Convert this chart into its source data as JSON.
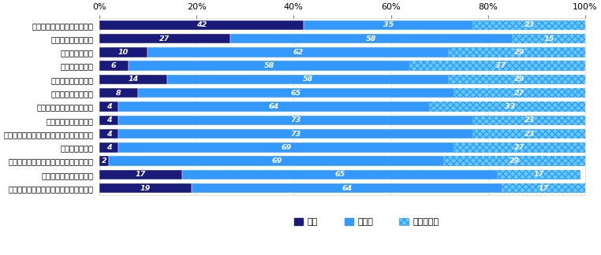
{
  "categories": [
    "事件に関して捜査が行われた",
    "加害者が逮捕された",
    "不起訴となった",
    "罰金刑となった",
    "刑事裁判が行われた",
    "実刑判決が確定した",
    "執行猶予付判決が確定した",
    "少年院送致が確定した",
    "「少年院送致」以外の保護処分が確定した",
    "無罪が確定した",
    "加害者が刑務所・少年院から釈放された",
    "加害者から謝罪があった",
    "加害者から示談金・賠償金が支払われた"
  ],
  "hai": [
    42,
    27,
    10,
    6,
    14,
    8,
    4,
    4,
    4,
    4,
    2,
    17,
    19
  ],
  "iie": [
    35,
    58,
    62,
    58,
    58,
    65,
    64,
    73,
    73,
    69,
    69,
    65,
    64
  ],
  "wakaranai": [
    23,
    15,
    29,
    37,
    29,
    27,
    33,
    23,
    23,
    27,
    29,
    17,
    17
  ],
  "color_hai": "#1a1a7a",
  "color_iie": "#3399ff",
  "color_wakaranai": "#66ccff",
  "legend_hai": "はい",
  "legend_iie": "いいえ",
  "legend_wakaranai": "わからない",
  "bar_height": 0.72,
  "figsize": [
    7.62,
    3.24
  ],
  "dpi": 100,
  "tick_fontsize": 8,
  "ylabel_fontsize": 7.2,
  "legend_fontsize": 8,
  "value_fontsize": 6.8
}
